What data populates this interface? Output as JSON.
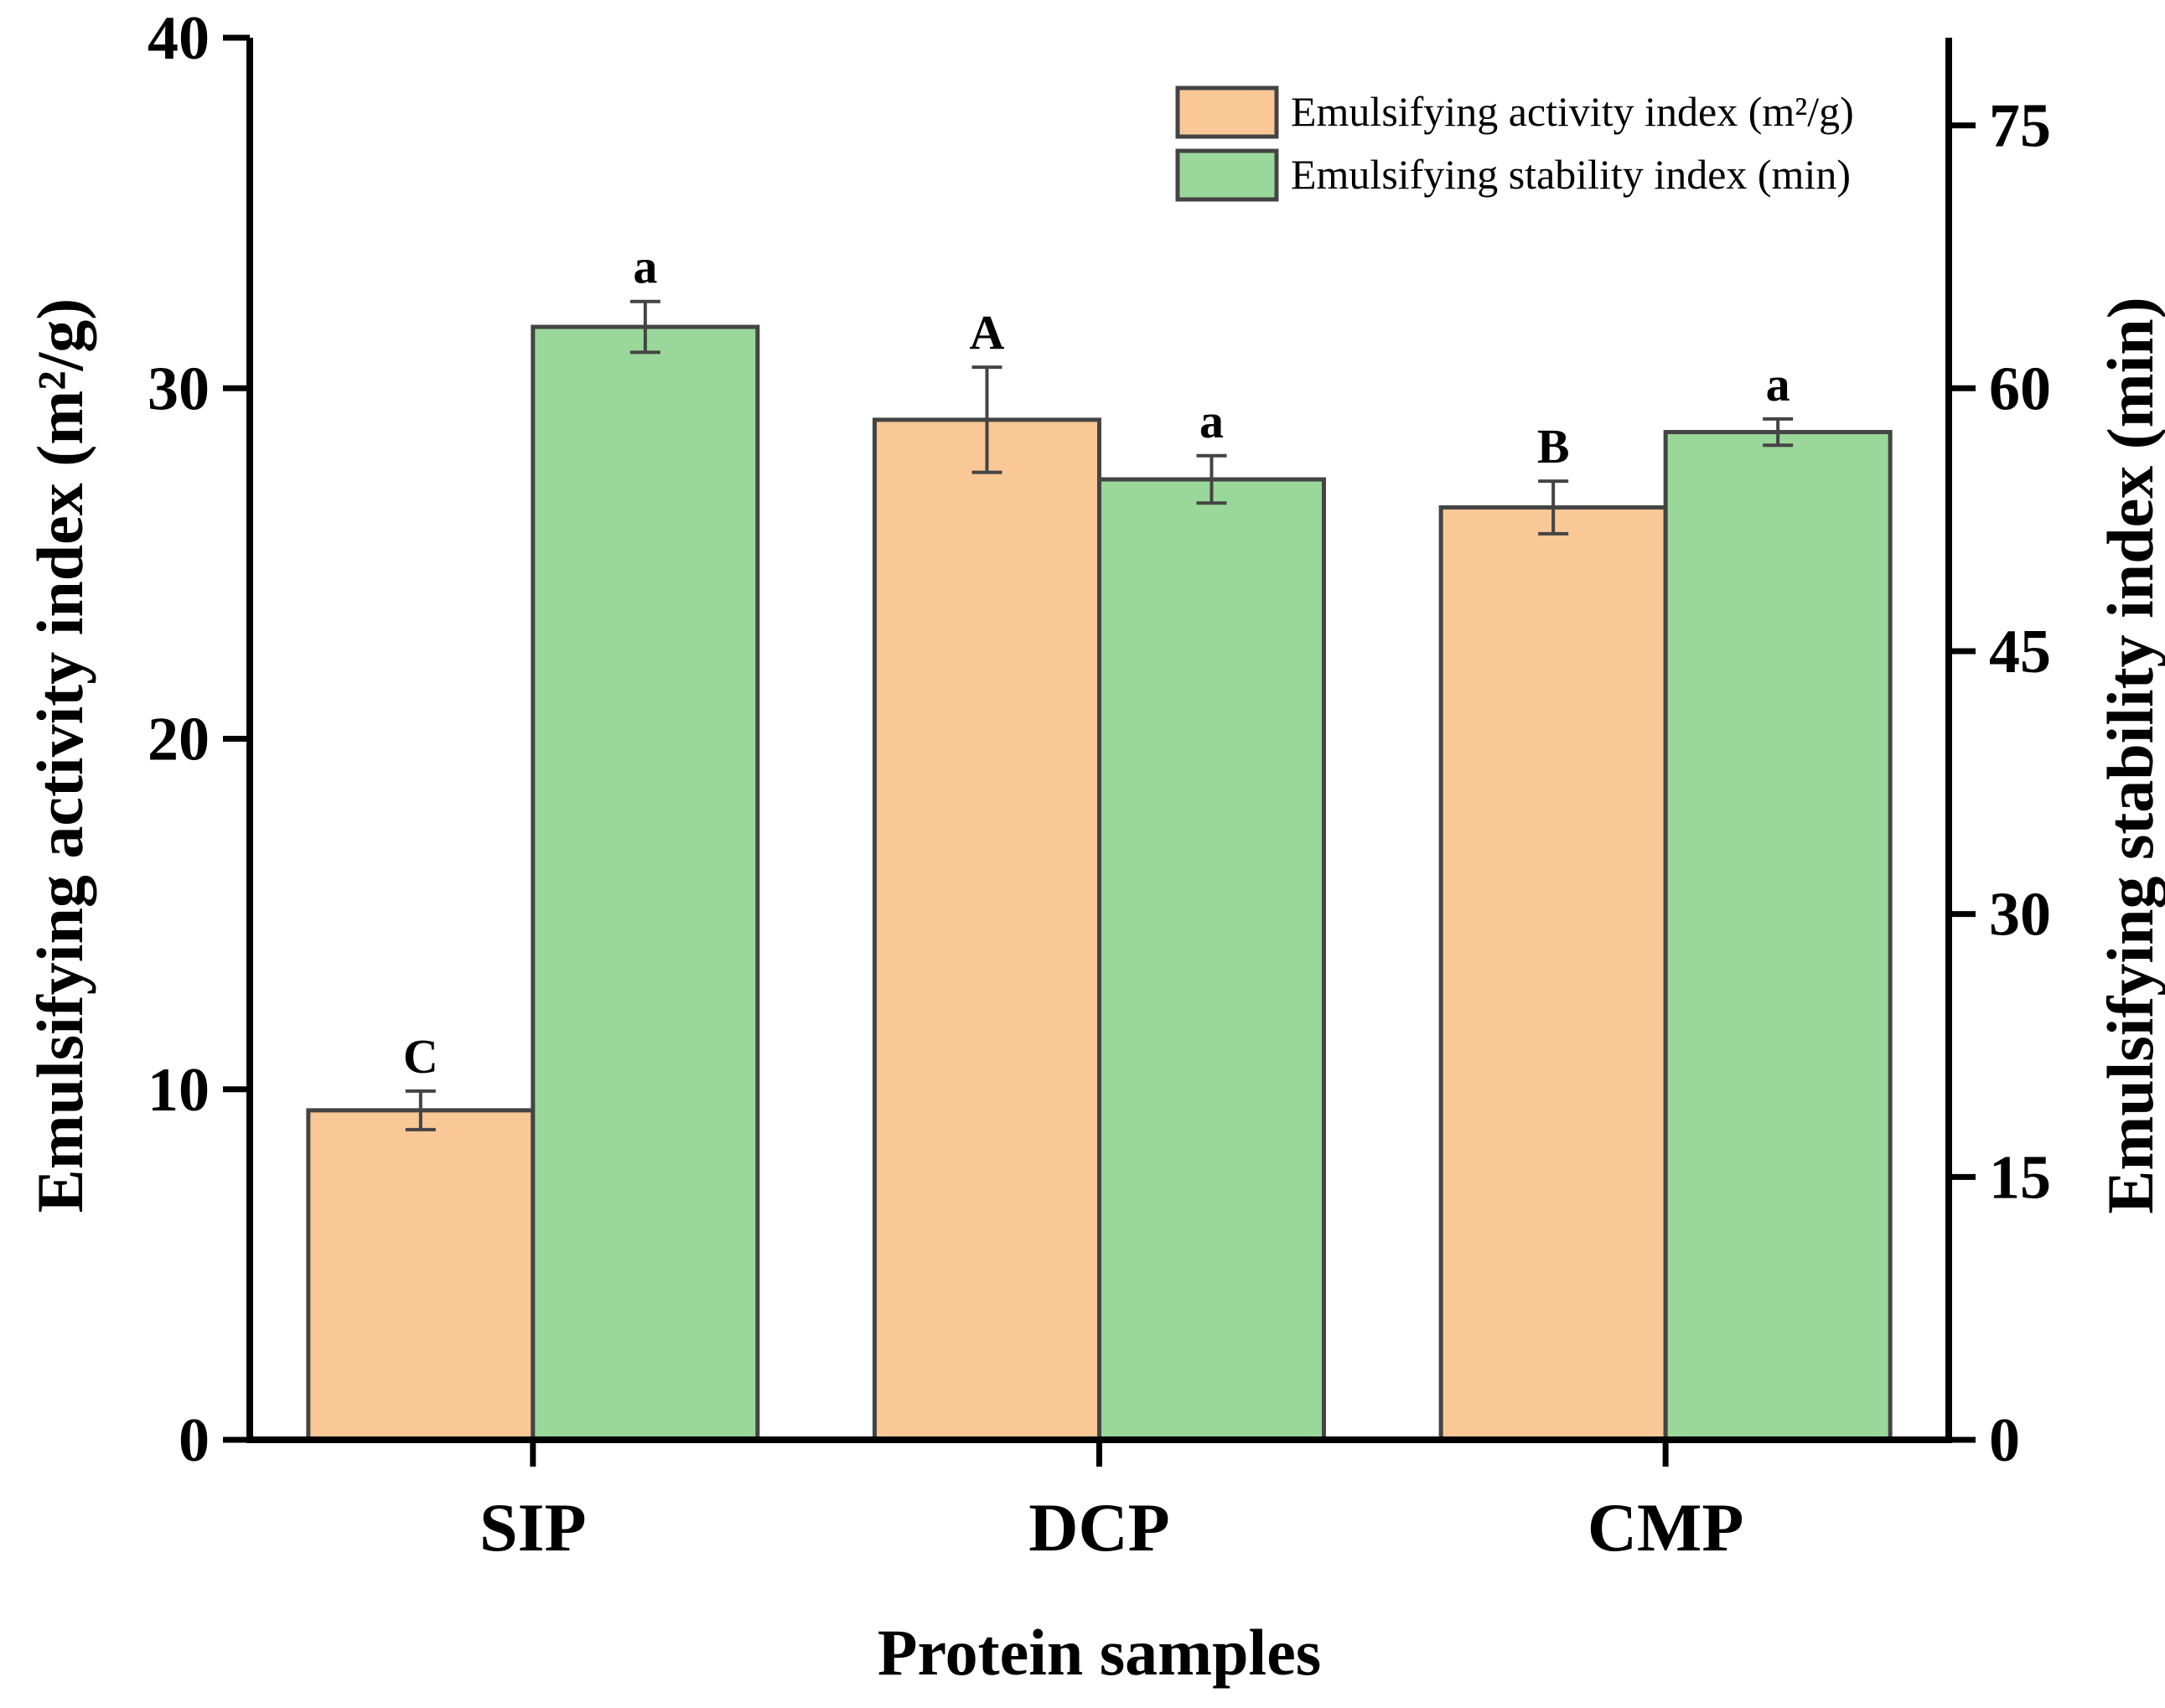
{
  "chart_data": {
    "type": "bar",
    "categories": [
      "SIP",
      "DCP",
      "CMP"
    ],
    "xlabel": "Protein samples",
    "ylabel_left": "Emulsifying activity index (m²/g)",
    "ylabel_right": "Emulsifying stability index (min)",
    "ylim_left": [
      0,
      40
    ],
    "yticks_left": [
      0,
      10,
      20,
      30,
      40
    ],
    "ylim_right": [
      0,
      80
    ],
    "yticks_right": [
      0,
      15,
      30,
      45,
      60,
      75
    ],
    "series": [
      {
        "name": "Emulsifying activity index (m²/g)",
        "axis": "left",
        "color": "#F9C896",
        "values": [
          9.4,
          29.1,
          26.6
        ],
        "errors": [
          0.55,
          1.5,
          0.75
        ],
        "significance": [
          "C",
          "A",
          "B"
        ]
      },
      {
        "name": "Emulsifying stability index (min)",
        "axis": "right",
        "color": "#9AD79A",
        "values": [
          63.5,
          54.8,
          57.5
        ],
        "errors": [
          1.45,
          1.35,
          0.75
        ],
        "significance": [
          "a",
          "a",
          "a"
        ]
      }
    ],
    "legend_position": "top-right",
    "grid": false
  }
}
